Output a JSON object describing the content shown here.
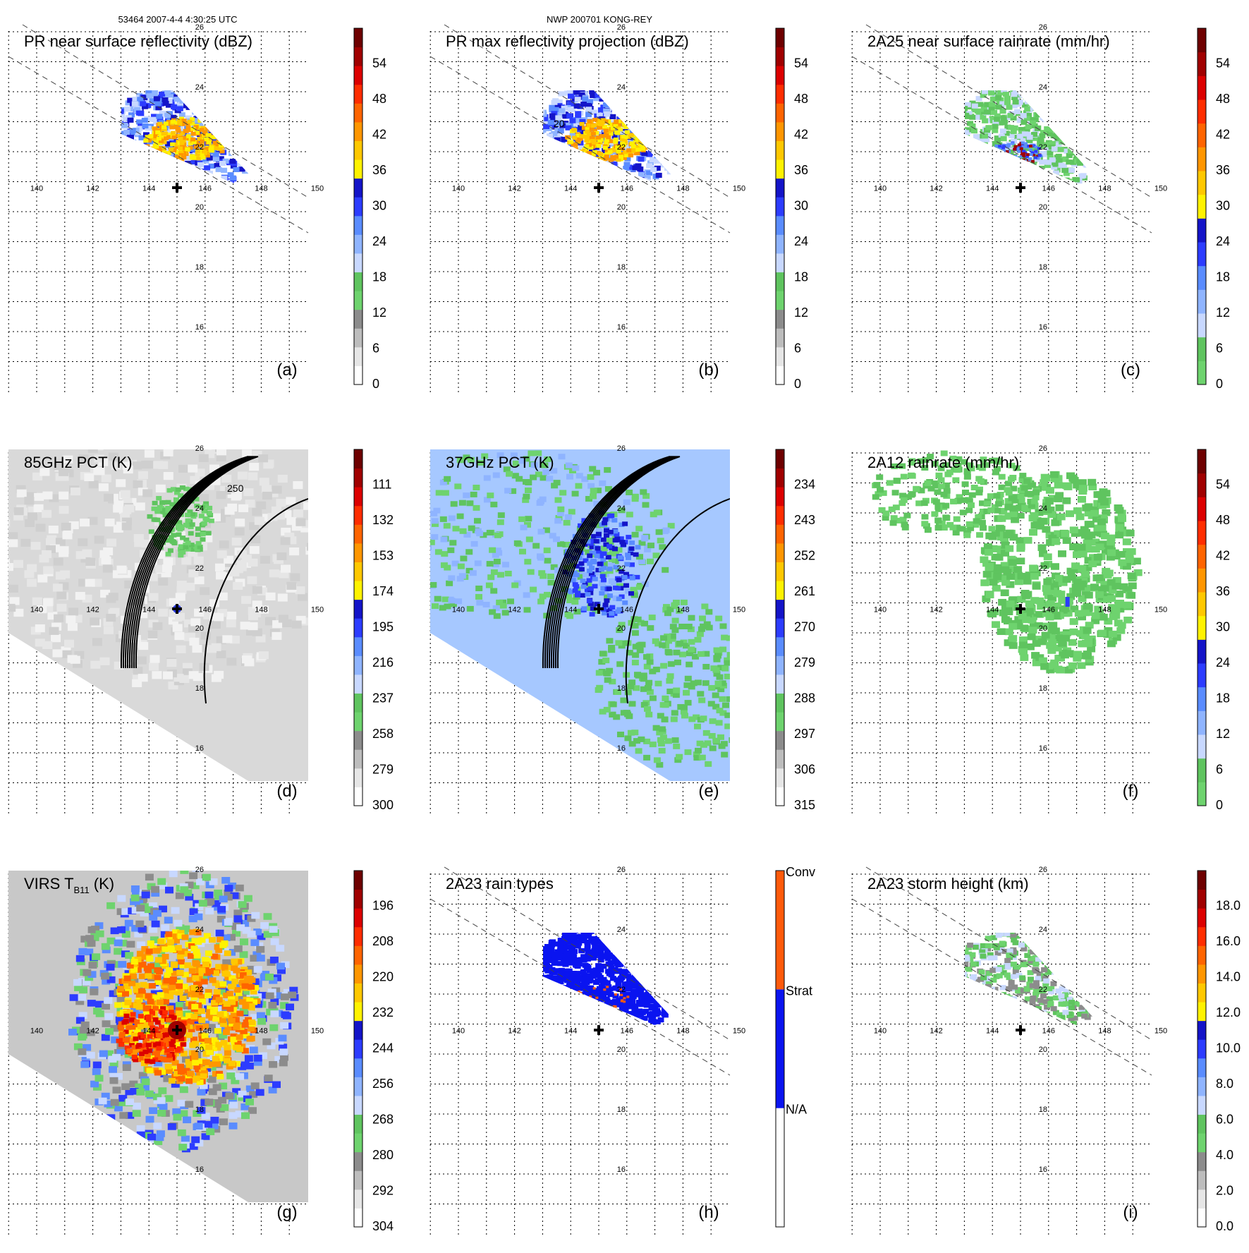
{
  "header": {
    "orbit_info": "53464 2007-4-4 4:30:25 UTC",
    "storm_info": "NWP 200701 KONG-REY"
  },
  "map": {
    "lon_labels": [
      "140",
      "142",
      "144",
      "146",
      "148",
      "150"
    ],
    "lat_labels": [
      "26",
      "24",
      "22",
      "20",
      "18",
      "16"
    ],
    "lon_range": [
      139,
      151
    ],
    "lat_range": [
      15,
      27
    ],
    "storm_center": {
      "lon": 145.0,
      "lat": 20.8
    },
    "storm_marker": "plus-icon"
  },
  "chart_data": [
    {
      "panel": "a",
      "type": "heatmap",
      "title": "PR near surface reflectivity (dBZ)",
      "label": "(a)",
      "colorbar_ticks": [
        "0",
        "6",
        "12",
        "18",
        "24",
        "30",
        "36",
        "42",
        "48",
        "54"
      ],
      "colorbar_range": [
        0,
        60
      ],
      "field": "pr_swath",
      "colors": [
        "#ffffff",
        "#e6e6e6",
        "#bdbdbd",
        "#8c8c8c",
        "#6ed36e",
        "#5fc45f",
        "#c8d8ff",
        "#8fb4ff",
        "#5a8cff",
        "#2c3cff",
        "#1414c8",
        "#fff200",
        "#ffc800",
        "#ff9600",
        "#ff6400",
        "#ff2d00",
        "#dc0000",
        "#a00000",
        "#6e0000"
      ]
    },
    {
      "panel": "b",
      "type": "heatmap",
      "title": "PR max reflectivity projection (dBZ)",
      "label": "(b)",
      "colorbar_ticks": [
        "0",
        "6",
        "12",
        "18",
        "24",
        "30",
        "36",
        "42",
        "48",
        "54"
      ],
      "colorbar_range": [
        0,
        60
      ],
      "field": "pr_swath_contour",
      "contour_label": "20",
      "colors": [
        "#ffffff",
        "#e6e6e6",
        "#bdbdbd",
        "#8c8c8c",
        "#6ed36e",
        "#5fc45f",
        "#c8d8ff",
        "#8fb4ff",
        "#5a8cff",
        "#2c3cff",
        "#1414c8",
        "#fff200",
        "#ffc800",
        "#ff9600",
        "#ff6400",
        "#ff2d00",
        "#dc0000",
        "#a00000",
        "#6e0000"
      ]
    },
    {
      "panel": "c",
      "type": "heatmap",
      "title": "2A25 near surface rainrate (mm/hr)",
      "label": "(c)",
      "colorbar_ticks": [
        "0",
        "6",
        "12",
        "18",
        "24",
        "30",
        "36",
        "42",
        "48",
        "54"
      ],
      "colorbar_range": [
        0,
        60
      ],
      "field": "rain_swath",
      "colors": [
        "#6ed36e",
        "#5fc45f",
        "#c8d8ff",
        "#8fb4ff",
        "#5a8cff",
        "#2c3cff",
        "#1414c8",
        "#fff200",
        "#ffc800",
        "#ff9600",
        "#ff6400",
        "#ff2d00",
        "#dc0000",
        "#a00000",
        "#6e0000"
      ]
    },
    {
      "panel": "d",
      "type": "heatmap",
      "title": "85GHz PCT (K)",
      "label": "(d)",
      "colorbar_ticks": [
        "300",
        "279",
        "258",
        "237",
        "216",
        "195",
        "174",
        "153",
        "132",
        "111"
      ],
      "colorbar_range": [
        300,
        90
      ],
      "field": "tmi_swath",
      "contour_label": "250",
      "colors": [
        "#ffffff",
        "#e6e6e6",
        "#bdbdbd",
        "#8c8c8c",
        "#6ed36e",
        "#5fc45f",
        "#c8d8ff",
        "#8fb4ff",
        "#5a8cff",
        "#2c3cff",
        "#1414c8",
        "#fff200",
        "#ffc800",
        "#ff9600",
        "#ff6400",
        "#ff2d00",
        "#dc0000",
        "#a00000",
        "#6e0000"
      ]
    },
    {
      "panel": "e",
      "type": "heatmap",
      "title": "37GHz PCT (K)",
      "label": "(e)",
      "colorbar_ticks": [
        "315",
        "306",
        "297",
        "288",
        "279",
        "270",
        "261",
        "252",
        "243",
        "234"
      ],
      "colorbar_range": [
        315,
        225
      ],
      "field": "tmi_swath_37",
      "colors": [
        "#ffffff",
        "#e6e6e6",
        "#bdbdbd",
        "#8c8c8c",
        "#6ed36e",
        "#5fc45f",
        "#c8d8ff",
        "#8fb4ff",
        "#5a8cff",
        "#2c3cff",
        "#1414c8",
        "#fff200",
        "#ffc800",
        "#ff9600",
        "#ff6400",
        "#ff2d00",
        "#dc0000",
        "#a00000",
        "#6e0000"
      ]
    },
    {
      "panel": "f",
      "type": "heatmap",
      "title": "2A12 rainrate (mm/hr)",
      "label": "(f)",
      "colorbar_ticks": [
        "0",
        "6",
        "12",
        "18",
        "24",
        "30",
        "36",
        "42",
        "48",
        "54"
      ],
      "colorbar_range": [
        0,
        60
      ],
      "field": "tmi_rain",
      "colors": [
        "#6ed36e",
        "#5fc45f",
        "#c8d8ff",
        "#8fb4ff",
        "#5a8cff",
        "#2c3cff",
        "#1414c8",
        "#fff200",
        "#ffc800",
        "#ff9600",
        "#ff6400",
        "#ff2d00",
        "#dc0000",
        "#a00000",
        "#6e0000"
      ]
    },
    {
      "panel": "g",
      "type": "heatmap",
      "title_main": "VIRS T",
      "title_sub": "B11",
      "title_unit": " (K)",
      "label": "(g)",
      "colorbar_ticks": [
        "304",
        "292",
        "280",
        "268",
        "256",
        "244",
        "232",
        "220",
        "208",
        "196"
      ],
      "colorbar_range": [
        304,
        184
      ],
      "field": "virs",
      "colors": [
        "#ffffff",
        "#e6e6e6",
        "#bdbdbd",
        "#8c8c8c",
        "#6ed36e",
        "#5fc45f",
        "#c8d8ff",
        "#8fb4ff",
        "#5a8cff",
        "#2c3cff",
        "#1414c8",
        "#fff200",
        "#ffc800",
        "#ff9600",
        "#ff6400",
        "#ff2d00",
        "#dc0000",
        "#a00000",
        "#6e0000"
      ]
    },
    {
      "panel": "h",
      "type": "heatmap",
      "title": "2A23 rain types",
      "label": "(h)",
      "categories": [
        "N/A",
        "Strat",
        "Conv"
      ],
      "category_colors": [
        "#ffffff",
        "#0a14f0",
        "#ff5a0a"
      ],
      "field": "rain_type"
    },
    {
      "panel": "i",
      "type": "heatmap",
      "title": "2A23 storm height (km)",
      "label": "(i)",
      "colorbar_ticks": [
        "0.0",
        "2.0",
        "4.0",
        "6.0",
        "8.0",
        "10.0",
        "12.0",
        "14.0",
        "16.0",
        "18.0"
      ],
      "colorbar_range": [
        0,
        20
      ],
      "field": "storm_height",
      "colors": [
        "#ffffff",
        "#e6e6e6",
        "#bdbdbd",
        "#8c8c8c",
        "#6ed36e",
        "#5fc45f",
        "#c8d8ff",
        "#8fb4ff",
        "#5a8cff",
        "#2c3cff",
        "#1414c8",
        "#fff200",
        "#ffc800",
        "#ff9600",
        "#ff6400",
        "#ff2d00",
        "#dc0000",
        "#a00000",
        "#6e0000"
      ]
    }
  ]
}
